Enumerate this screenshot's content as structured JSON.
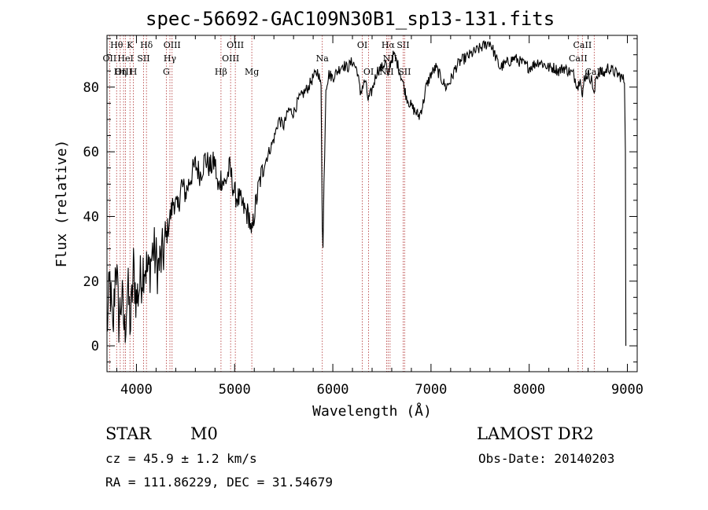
{
  "chart_data": {
    "type": "line",
    "title": "spec-56692-GAC109N30B1_sp13-131.fits",
    "xlabel": "Wavelength (Å)",
    "ylabel": "Flux (relative)",
    "xlim": [
      3700,
      9100
    ],
    "ylim": [
      -8,
      96
    ],
    "xticks": [
      {
        "value": 4000,
        "label": "4000"
      },
      {
        "value": 5000,
        "label": "5000"
      },
      {
        "value": 6000,
        "label": "6000"
      },
      {
        "value": 7000,
        "label": "7000"
      },
      {
        "value": 8000,
        "label": "8000"
      },
      {
        "value": 9000,
        "label": "9000"
      }
    ],
    "yticks": [
      {
        "value": 0,
        "label": "0"
      },
      {
        "value": 20,
        "label": "20"
      },
      {
        "value": 40,
        "label": "40"
      },
      {
        "value": 60,
        "label": "60"
      },
      {
        "value": 80,
        "label": "80"
      }
    ],
    "grid": false,
    "series": [
      {
        "color": "#000000",
        "anchors": [
          [
            3700,
            5
          ],
          [
            3730,
            20
          ],
          [
            3760,
            2
          ],
          [
            3790,
            28
          ],
          [
            3820,
            8
          ],
          [
            3850,
            15
          ],
          [
            3880,
            4
          ],
          [
            3910,
            18
          ],
          [
            3940,
            6
          ],
          [
            3970,
            24
          ],
          [
            4000,
            14
          ],
          [
            4040,
            20
          ],
          [
            4080,
            26
          ],
          [
            4120,
            22
          ],
          [
            4170,
            30
          ],
          [
            4220,
            24
          ],
          [
            4270,
            28
          ],
          [
            4300,
            33
          ],
          [
            4330,
            38
          ],
          [
            4380,
            45
          ],
          [
            4420,
            42
          ],
          [
            4460,
            50
          ],
          [
            4500,
            47
          ],
          [
            4550,
            52
          ],
          [
            4600,
            56
          ],
          [
            4650,
            53
          ],
          [
            4700,
            58
          ],
          [
            4750,
            55
          ],
          [
            4800,
            57
          ],
          [
            4830,
            48
          ],
          [
            4860,
            52
          ],
          [
            4900,
            50
          ],
          [
            4950,
            55
          ],
          [
            5000,
            47
          ],
          [
            5050,
            45
          ],
          [
            5100,
            42
          ],
          [
            5150,
            40
          ],
          [
            5170,
            33
          ],
          [
            5200,
            41
          ],
          [
            5250,
            50
          ],
          [
            5300,
            56
          ],
          [
            5350,
            60
          ],
          [
            5400,
            64
          ],
          [
            5450,
            70
          ],
          [
            5500,
            68
          ],
          [
            5550,
            73
          ],
          [
            5600,
            72
          ],
          [
            5650,
            76
          ],
          [
            5700,
            78
          ],
          [
            5750,
            80
          ],
          [
            5800,
            83
          ],
          [
            5850,
            85
          ],
          [
            5880,
            80
          ],
          [
            5893,
            38
          ],
          [
            5900,
            30
          ],
          [
            5910,
            50
          ],
          [
            5930,
            80
          ],
          [
            5960,
            84
          ],
          [
            6000,
            83
          ],
          [
            6050,
            85
          ],
          [
            6100,
            87
          ],
          [
            6150,
            86
          ],
          [
            6200,
            88
          ],
          [
            6250,
            85
          ],
          [
            6280,
            78
          ],
          [
            6300,
            80
          ],
          [
            6330,
            82
          ],
          [
            6360,
            76
          ],
          [
            6400,
            79
          ],
          [
            6450,
            85
          ],
          [
            6500,
            86
          ],
          [
            6540,
            88
          ],
          [
            6563,
            82
          ],
          [
            6580,
            87
          ],
          [
            6620,
            90
          ],
          [
            6650,
            88
          ],
          [
            6700,
            83
          ],
          [
            6750,
            77
          ],
          [
            6800,
            74
          ],
          [
            6850,
            72
          ],
          [
            6880,
            71
          ],
          [
            6920,
            75
          ],
          [
            6950,
            80
          ],
          [
            7000,
            84
          ],
          [
            7050,
            86
          ],
          [
            7100,
            83
          ],
          [
            7150,
            80
          ],
          [
            7200,
            82
          ],
          [
            7250,
            86
          ],
          [
            7300,
            88
          ],
          [
            7350,
            89
          ],
          [
            7400,
            90
          ],
          [
            7450,
            91
          ],
          [
            7500,
            92
          ],
          [
            7550,
            93
          ],
          [
            7600,
            94
          ],
          [
            7650,
            90
          ],
          [
            7700,
            86
          ],
          [
            7750,
            87
          ],
          [
            7800,
            88
          ],
          [
            7850,
            89
          ],
          [
            7900,
            88
          ],
          [
            7950,
            87
          ],
          [
            8000,
            86
          ],
          [
            8050,
            87
          ],
          [
            8100,
            88
          ],
          [
            8150,
            87
          ],
          [
            8200,
            86
          ],
          [
            8250,
            86
          ],
          [
            8300,
            85
          ],
          [
            8350,
            86
          ],
          [
            8400,
            85
          ],
          [
            8450,
            84
          ],
          [
            8498,
            80
          ],
          [
            8520,
            84
          ],
          [
            8542,
            76
          ],
          [
            8560,
            83
          ],
          [
            8600,
            84
          ],
          [
            8640,
            82
          ],
          [
            8662,
            77
          ],
          [
            8680,
            83
          ],
          [
            8720,
            85
          ],
          [
            8760,
            84
          ],
          [
            8800,
            86
          ],
          [
            8850,
            85
          ],
          [
            8900,
            84
          ],
          [
            8940,
            83
          ],
          [
            8970,
            82
          ],
          [
            8980,
            60
          ],
          [
            8985,
            0
          ]
        ]
      }
    ],
    "line_markers": [
      {
        "label": "Hθ",
        "x": 3798,
        "row": 0
      },
      {
        "label": "OII",
        "x": 3727,
        "row": 1
      },
      {
        "label": "OIII",
        "x": 3869,
        "row": 2
      },
      {
        "label": "K",
        "x": 3934,
        "row": 0
      },
      {
        "label": "H",
        "x": 3969,
        "row": 2
      },
      {
        "label": "HeI",
        "x": 3889,
        "row": 1
      },
      {
        "label": "Hη",
        "x": 3835,
        "row": 2
      },
      {
        "label": "SII",
        "x": 4072,
        "row": 1
      },
      {
        "label": "Hδ",
        "x": 4102,
        "row": 0
      },
      {
        "label": "G",
        "x": 4304,
        "row": 2
      },
      {
        "label": "Hγ",
        "x": 4341,
        "row": 1
      },
      {
        "label": "OIII",
        "x": 4363,
        "row": 0
      },
      {
        "label": "Hβ",
        "x": 4861,
        "row": 2
      },
      {
        "label": "OIII",
        "x": 4959,
        "row": 1
      },
      {
        "label": "OIII",
        "x": 5007,
        "row": 0
      },
      {
        "label": "Mg",
        "x": 5175,
        "row": 2
      },
      {
        "label": "Na",
        "x": 5893,
        "row": 1
      },
      {
        "label": "OI",
        "x": 6300,
        "row": 0
      },
      {
        "label": "OI",
        "x": 6364,
        "row": 2
      },
      {
        "label": "NII",
        "x": 6548,
        "row": 2
      },
      {
        "label": "Hα",
        "x": 6563,
        "row": 0
      },
      {
        "label": "NII",
        "x": 6583,
        "row": 1
      },
      {
        "label": "SII",
        "x": 6716,
        "row": 0
      },
      {
        "label": "SII",
        "x": 6731,
        "row": 2
      },
      {
        "label": "CaII",
        "x": 8498,
        "row": 1
      },
      {
        "label": "CaII",
        "x": 8542,
        "row": 0
      },
      {
        "label": "CaII",
        "x": 8662,
        "row": 2
      }
    ]
  },
  "info": {
    "object_type": "STAR",
    "subclass": "M0",
    "survey": "LAMOST DR2",
    "cz": "cz = 45.9 ± 1.2 km/s",
    "obs_date": "Obs-Date: 20140203",
    "coords": "RA = 111.86229, DEC =  31.54679"
  }
}
